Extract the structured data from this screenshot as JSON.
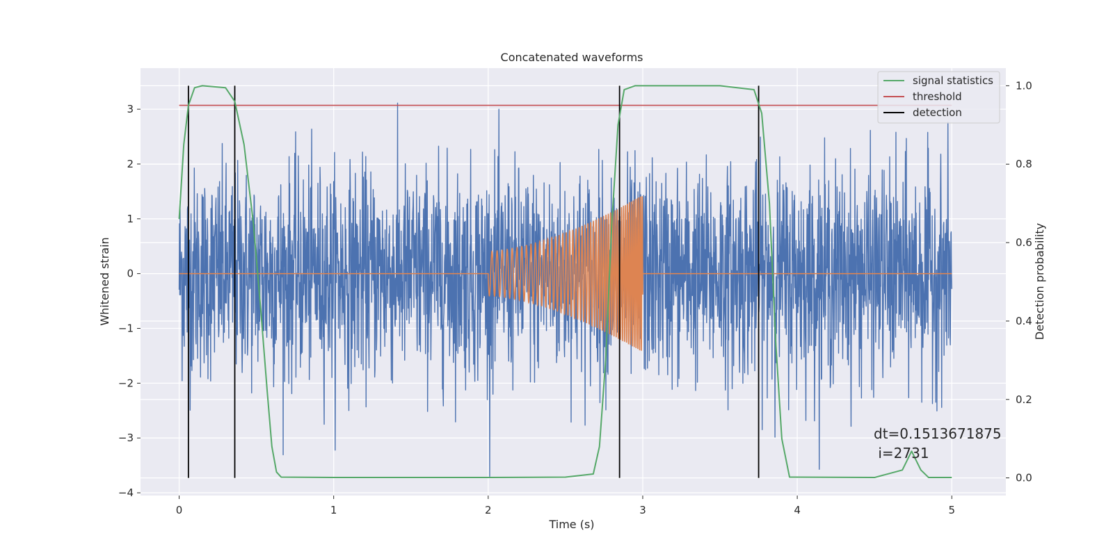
{
  "chart_data": {
    "type": "line",
    "title": "Concatenated waveforms",
    "xlabel": "Time (s)",
    "ylabel": "Whitened strain",
    "y2label": "Detection probability",
    "xlim": [
      -0.25,
      5.35
    ],
    "ylim": [
      -4.05,
      3.75
    ],
    "y2lim": [
      -0.045,
      1.045
    ],
    "xticks": [
      0,
      1,
      2,
      3,
      4,
      5
    ],
    "yticks": [
      -4,
      -3,
      -2,
      -1,
      0,
      1,
      2,
      3
    ],
    "y2ticks": [
      0.0,
      0.2,
      0.4,
      0.6,
      0.8,
      1.0
    ],
    "y2ticklabels": [
      "0.0",
      "0.2",
      "0.4",
      "0.6",
      "0.8",
      "1.0"
    ],
    "grid": true,
    "legend_position": "top-right",
    "colors": {
      "background": "#eaeaf2",
      "grid": "#ffffff",
      "strain": "#4c72b0",
      "injection": "#dd8452",
      "statistics": "#55a868",
      "threshold": "#c44e52",
      "detection": "#000000"
    },
    "series": [
      {
        "name": "",
        "axis": "left",
        "description": "whitened strain noise, 0 to 5 s, amplitude mostly within ±2.5, peaks near ±3.3",
        "t_start": 0,
        "t_end": 5,
        "envelope": [
          -3.7,
          3.3
        ]
      },
      {
        "name": "",
        "axis": "left",
        "description": "injected chirp between 2.0 s and 3.0 s, zero elsewhere",
        "t_start": 2.0,
        "t_end": 3.0,
        "amplitude_start": 0.45,
        "amplitude_end": 1.6,
        "freq_start_hz": 30,
        "freq_end_hz": 90
      },
      {
        "name": "signal statistics",
        "axis": "right",
        "x": [
          0.0,
          0.03,
          0.06,
          0.1,
          0.15,
          0.3,
          0.36,
          0.42,
          0.48,
          0.53,
          0.57,
          0.6,
          0.63,
          0.66,
          1.0,
          2.0,
          2.5,
          2.68,
          2.72,
          2.76,
          2.8,
          2.84,
          2.88,
          2.95,
          3.5,
          3.72,
          3.77,
          3.82,
          3.86,
          3.9,
          3.95,
          4.5,
          4.68,
          4.74,
          4.8,
          4.85,
          5.0
        ],
        "y": [
          0.66,
          0.85,
          0.95,
          0.995,
          1.0,
          0.995,
          0.96,
          0.85,
          0.65,
          0.42,
          0.22,
          0.08,
          0.015,
          0.002,
          0.001,
          0.001,
          0.002,
          0.01,
          0.08,
          0.3,
          0.65,
          0.9,
          0.99,
          1.0,
          1.0,
          0.99,
          0.93,
          0.7,
          0.35,
          0.1,
          0.002,
          0.001,
          0.02,
          0.068,
          0.02,
          0.001,
          0.001
        ]
      },
      {
        "name": "threshold",
        "axis": "right",
        "x": [
          0,
          5
        ],
        "y": [
          0.95,
          0.95
        ]
      },
      {
        "name": "detection",
        "axis": "right",
        "x": [
          0.06,
          0.36,
          2.85,
          3.75
        ],
        "y_range": [
          0.0,
          1.0
        ]
      }
    ],
    "legend": [
      "signal statistics",
      "threshold",
      "detection"
    ],
    "annotation": [
      "dt=0.1513671875",
      " i=2731"
    ]
  }
}
